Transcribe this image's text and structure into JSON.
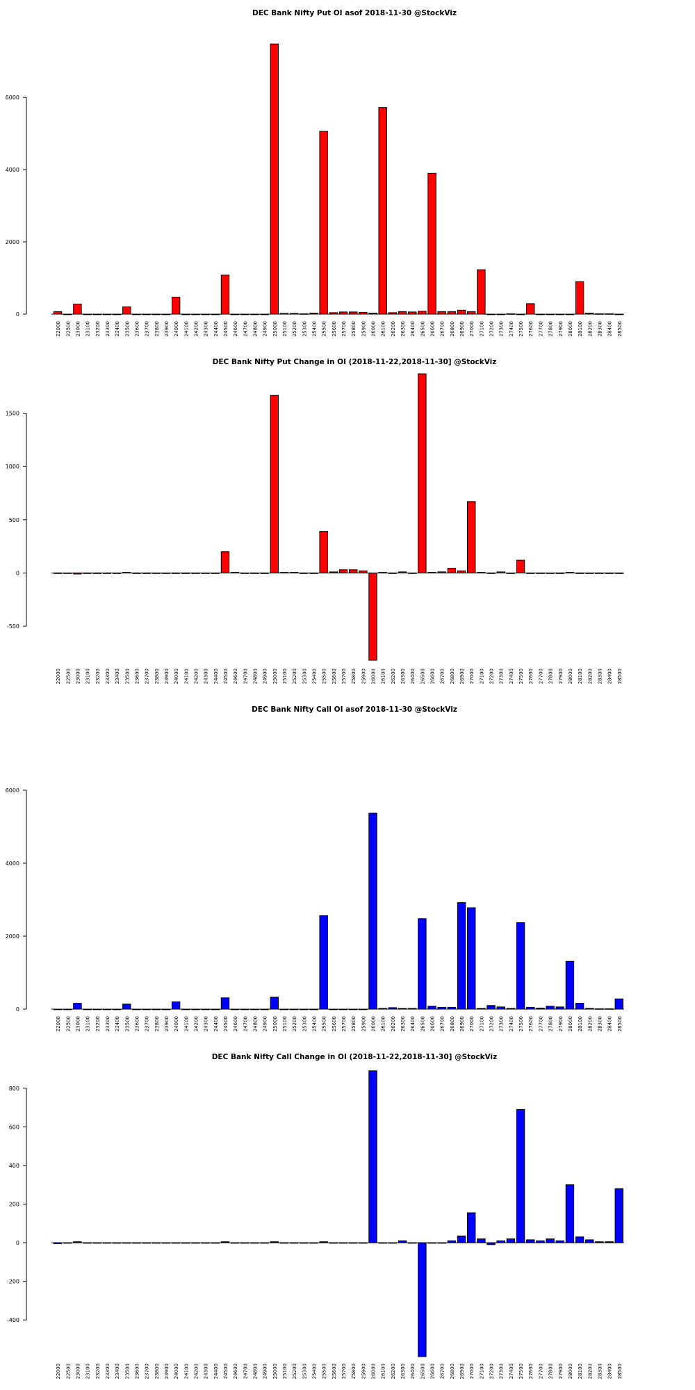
{
  "chart_data": [
    {
      "type": "bar",
      "title": "DEC Bank Nifty Put OI asof 2018-11-30 @StockViz",
      "xlabel": "",
      "ylabel": "",
      "color": "#ff0000",
      "ylim": [
        0,
        7600
      ],
      "yticks": [
        0,
        2000,
        4000,
        6000
      ],
      "categories": [
        "22000",
        "22500",
        "23000",
        "23100",
        "23200",
        "23300",
        "23400",
        "23500",
        "23600",
        "23700",
        "23800",
        "23900",
        "24000",
        "24100",
        "24200",
        "24300",
        "24400",
        "24500",
        "24600",
        "24700",
        "24800",
        "24900",
        "25000",
        "25100",
        "25200",
        "25300",
        "25400",
        "25500",
        "25600",
        "25700",
        "25800",
        "25900",
        "26000",
        "26100",
        "26200",
        "26300",
        "26400",
        "26500",
        "26600",
        "26700",
        "26800",
        "26900",
        "27000",
        "27100",
        "27200",
        "27300",
        "27400",
        "27500",
        "27600",
        "27700",
        "27800",
        "27900",
        "28000",
        "28100",
        "28200",
        "28300",
        "28400",
        "28500"
      ],
      "values": [
        70,
        0,
        280,
        0,
        0,
        0,
        0,
        200,
        0,
        0,
        0,
        0,
        470,
        0,
        0,
        0,
        0,
        1080,
        0,
        0,
        0,
        0,
        7480,
        20,
        20,
        10,
        30,
        5060,
        40,
        60,
        60,
        50,
        30,
        5720,
        40,
        70,
        60,
        80,
        3900,
        70,
        70,
        110,
        70,
        1230,
        0,
        0,
        10,
        0,
        290,
        0,
        0,
        0,
        0,
        900,
        30,
        10,
        10,
        0
      ]
    },
    {
      "type": "bar",
      "title": "DEC Bank Nifty Put Change in OI (2018-11-22,2018-11-30] @StockViz",
      "xlabel": "",
      "ylabel": "",
      "color": "#ff0000",
      "ylim": [
        -820,
        1870
      ],
      "yticks": [
        -500,
        0,
        500,
        1000,
        1500
      ],
      "categories": [
        "22000",
        "22500",
        "23000",
        "23100",
        "23200",
        "23300",
        "23400",
        "23500",
        "23600",
        "23700",
        "23800",
        "23900",
        "24000",
        "24100",
        "24200",
        "24300",
        "24400",
        "24500",
        "24600",
        "24700",
        "24800",
        "24900",
        "25000",
        "25100",
        "25200",
        "25300",
        "25400",
        "25500",
        "25600",
        "25700",
        "25800",
        "25900",
        "26000",
        "26100",
        "26200",
        "26300",
        "26400",
        "26500",
        "26600",
        "26700",
        "26800",
        "26900",
        "27000",
        "27100",
        "27200",
        "27300",
        "27400",
        "27500",
        "27600",
        "27700",
        "27800",
        "27900",
        "28000",
        "28100",
        "28200",
        "28300",
        "28400",
        "28500"
      ],
      "values": [
        0,
        0,
        -10,
        0,
        0,
        0,
        0,
        5,
        0,
        0,
        0,
        0,
        0,
        0,
        0,
        0,
        0,
        200,
        5,
        0,
        0,
        0,
        1670,
        5,
        5,
        0,
        0,
        390,
        10,
        30,
        30,
        20,
        -820,
        5,
        0,
        10,
        0,
        1870,
        5,
        10,
        45,
        20,
        670,
        5,
        0,
        10,
        0,
        120,
        0,
        0,
        0,
        0,
        5,
        0,
        0,
        0,
        0,
        0
      ]
    },
    {
      "type": "bar",
      "title": "DEC Bank Nifty Call OI asof 2018-11-30 @StockViz",
      "xlabel": "",
      "ylabel": "",
      "color": "#0000ff",
      "ylim": [
        0,
        6000
      ],
      "yticks": [
        0,
        2000,
        4000,
        6000
      ],
      "categories": [
        "22000",
        "22500",
        "23000",
        "23100",
        "23200",
        "23300",
        "23400",
        "23500",
        "23600",
        "23700",
        "23800",
        "23900",
        "24000",
        "24100",
        "24200",
        "24300",
        "24400",
        "24500",
        "24600",
        "24700",
        "24800",
        "24900",
        "25000",
        "25100",
        "25200",
        "25300",
        "25400",
        "25500",
        "25600",
        "25700",
        "25800",
        "25900",
        "26000",
        "26100",
        "26200",
        "26300",
        "26400",
        "26500",
        "26600",
        "26700",
        "26800",
        "26900",
        "27000",
        "27100",
        "27200",
        "27300",
        "27400",
        "27500",
        "27600",
        "27700",
        "27800",
        "27900",
        "28000",
        "28100",
        "28200",
        "28300",
        "28400",
        "28500"
      ],
      "values": [
        0,
        0,
        160,
        0,
        0,
        0,
        0,
        140,
        0,
        0,
        0,
        0,
        200,
        0,
        0,
        0,
        0,
        310,
        0,
        0,
        0,
        0,
        330,
        0,
        0,
        0,
        0,
        2560,
        0,
        0,
        0,
        0,
        5370,
        20,
        40,
        20,
        20,
        2480,
        80,
        50,
        50,
        2920,
        2780,
        20,
        100,
        60,
        20,
        2370,
        50,
        30,
        80,
        60,
        1310,
        160,
        20,
        10,
        10,
        280
      ]
    },
    {
      "type": "bar",
      "title": "DEC Bank Nifty Call Change in OI (2018-11-22,2018-11-30] @StockViz",
      "xlabel": "",
      "ylabel": "",
      "color": "#0000ff",
      "ylim": [
        -590,
        900
      ],
      "yticks": [
        -400,
        -200,
        0,
        200,
        400,
        600,
        800
      ],
      "categories": [
        "22000",
        "22500",
        "23000",
        "23100",
        "23200",
        "23300",
        "23400",
        "23500",
        "23600",
        "23700",
        "23800",
        "23900",
        "24000",
        "24100",
        "24200",
        "24300",
        "24400",
        "24500",
        "24600",
        "24700",
        "24800",
        "24900",
        "25000",
        "25100",
        "25200",
        "25300",
        "25400",
        "25500",
        "25600",
        "25700",
        "25800",
        "25900",
        "26000",
        "26100",
        "26200",
        "26300",
        "26400",
        "26500",
        "26600",
        "26700",
        "26800",
        "26900",
        "27000",
        "27100",
        "27200",
        "27300",
        "27400",
        "27500",
        "27600",
        "27700",
        "27800",
        "27900",
        "28000",
        "28100",
        "28200",
        "28300",
        "28400",
        "28500"
      ],
      "values": [
        -5,
        0,
        5,
        0,
        0,
        0,
        0,
        0,
        0,
        0,
        0,
        0,
        0,
        0,
        0,
        0,
        0,
        5,
        0,
        0,
        0,
        0,
        5,
        0,
        0,
        0,
        0,
        5,
        0,
        0,
        0,
        0,
        890,
        0,
        0,
        10,
        0,
        -590,
        0,
        0,
        10,
        35,
        155,
        20,
        -10,
        10,
        20,
        690,
        15,
        10,
        20,
        10,
        300,
        30,
        15,
        5,
        5,
        280
      ]
    }
  ]
}
